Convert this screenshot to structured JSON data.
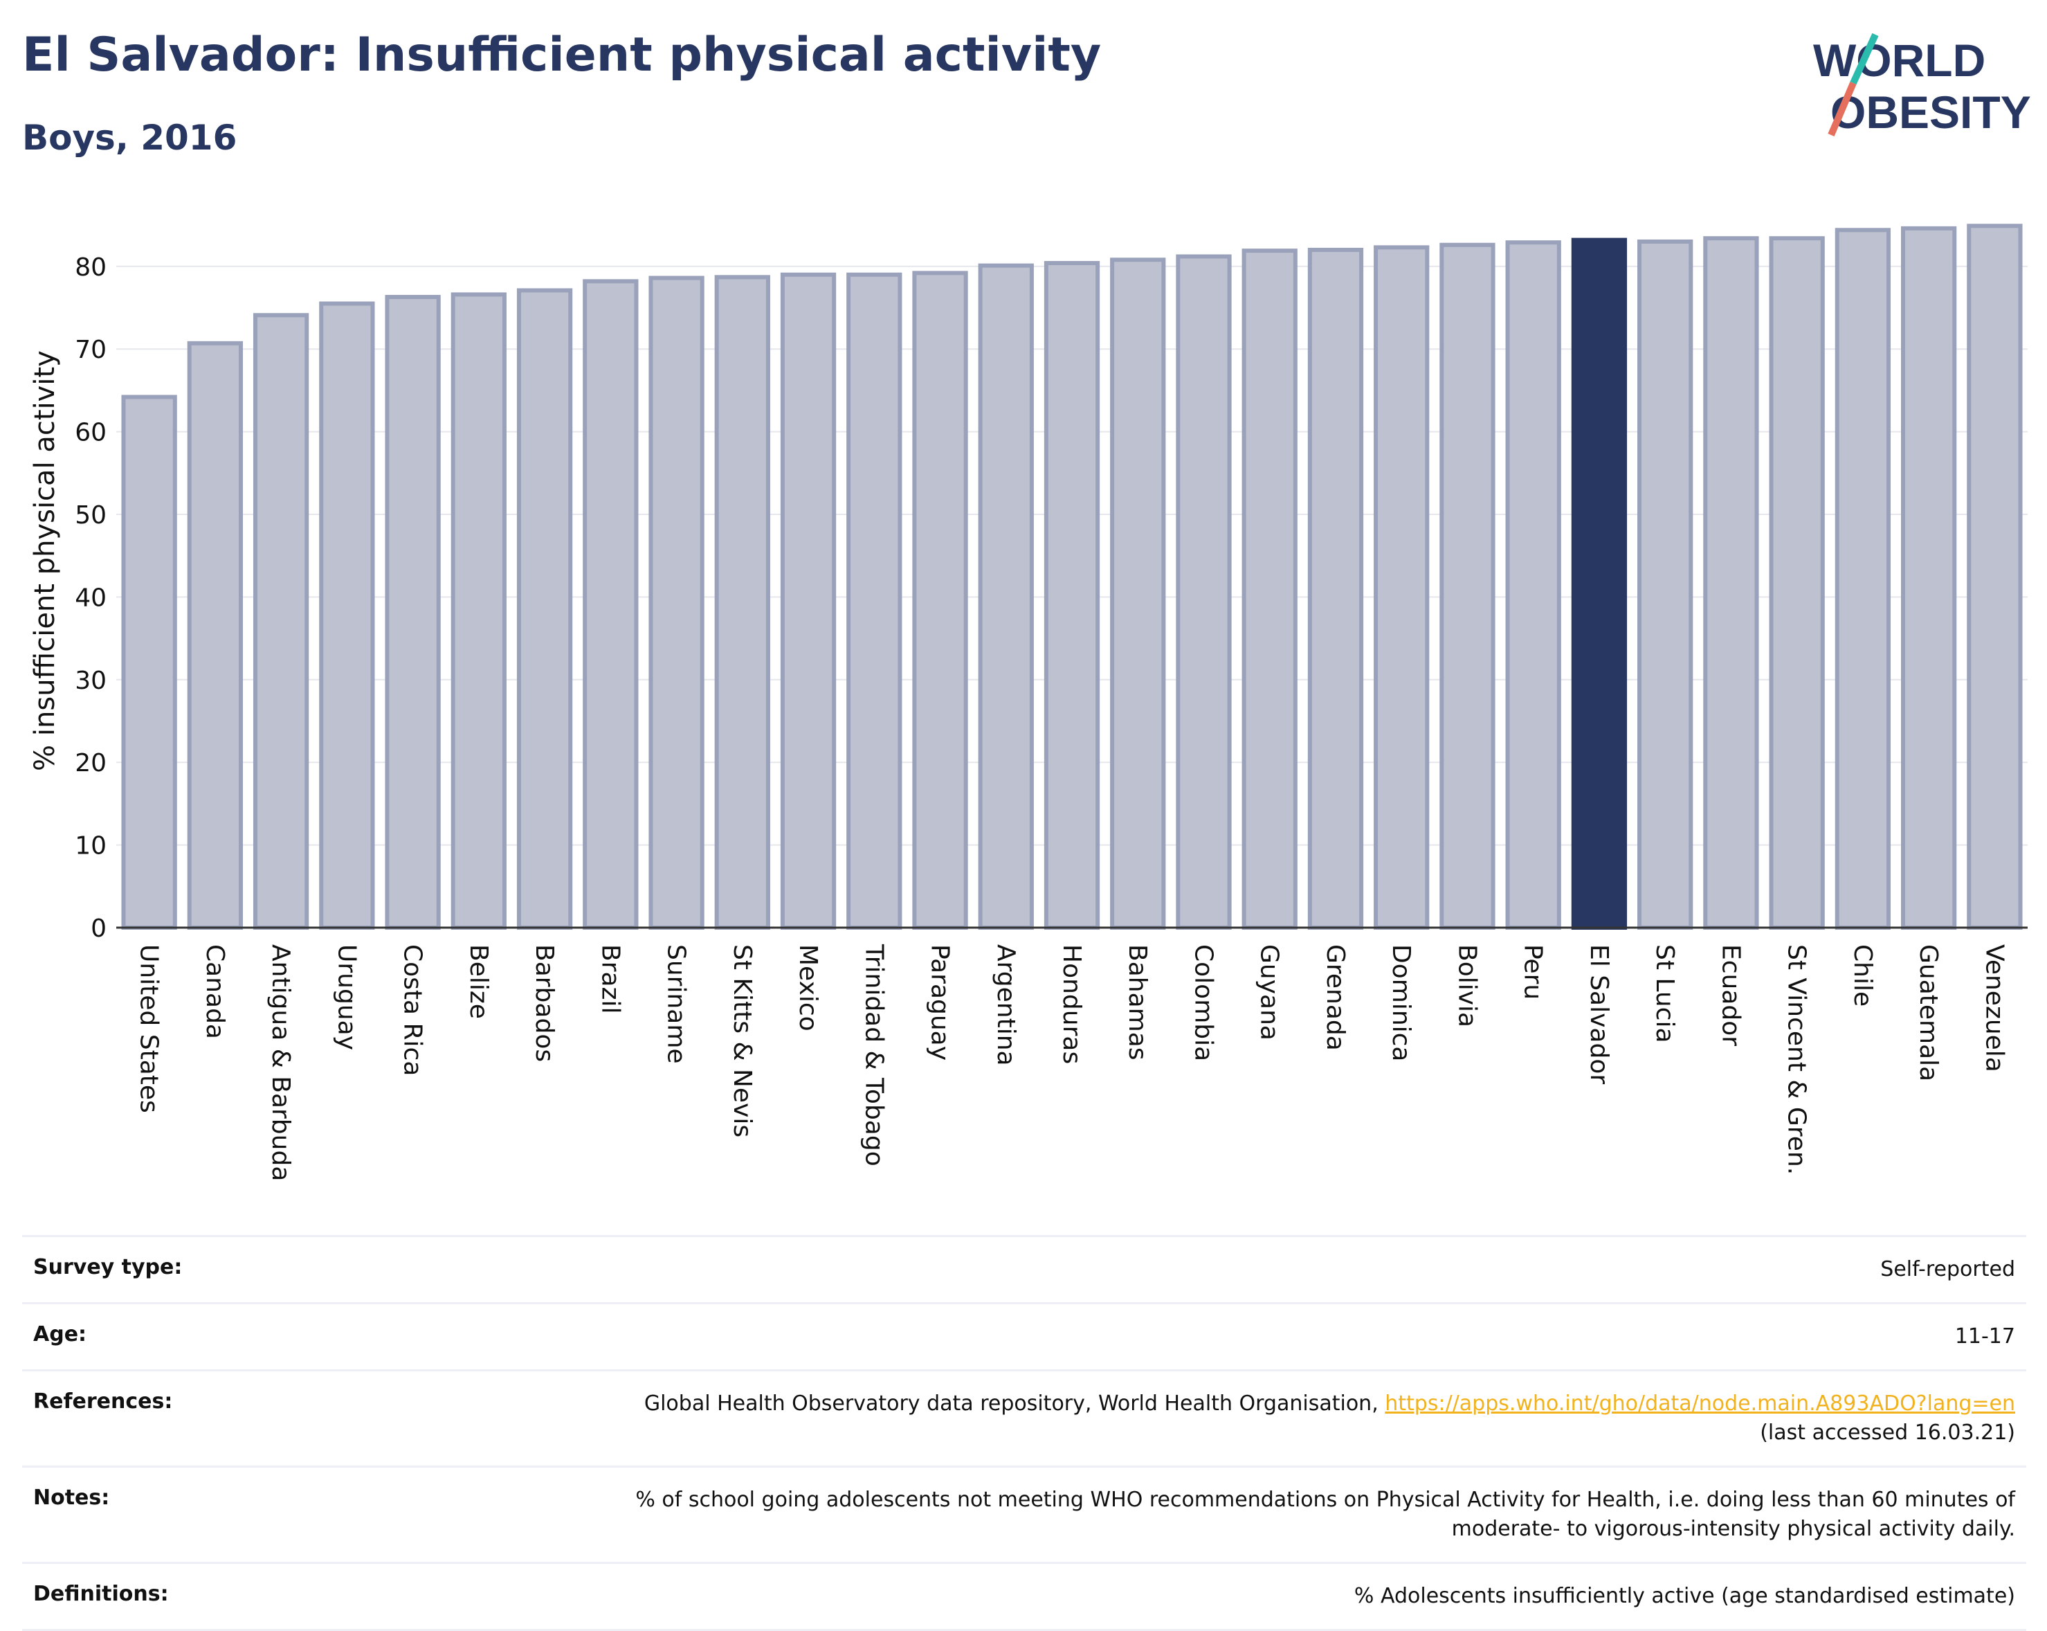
{
  "header": {
    "title": "El Salvador: Insufficient physical activity",
    "subtitle": "Boys, 2016"
  },
  "logo": {
    "line1": "WORLD",
    "line2": "OBESITY"
  },
  "colors": {
    "highlight": "#283761",
    "bar": "#bec2d0",
    "bar_edge": "#9aa1ba",
    "accent_teal": "#2bbbad",
    "accent_coral": "#e56f5c",
    "link": "#f2b21d"
  },
  "chart_data": {
    "type": "bar",
    "title": "El Salvador: Insufficient physical activity",
    "subtitle": "Boys, 2016",
    "xlabel": "",
    "ylabel": "% insufficient physical activity",
    "ylim": [
      0,
      85
    ],
    "yticks": [
      0,
      10,
      20,
      30,
      40,
      50,
      60,
      70,
      80
    ],
    "grid": true,
    "highlight": "El Salvador",
    "categories": [
      "United States",
      "Canada",
      "Antigua & Barbuda",
      "Uruguay",
      "Costa Rica",
      "Belize",
      "Barbados",
      "Brazil",
      "Suriname",
      "St Kitts & Nevis",
      "Mexico",
      "Trinidad & Tobago",
      "Paraguay",
      "Argentina",
      "Honduras",
      "Bahamas",
      "Colombia",
      "Guyana",
      "Grenada",
      "Dominica",
      "Bolivia",
      "Peru",
      "El Salvador",
      "St Lucia",
      "Ecuador",
      "St Vincent & Gren.",
      "Chile",
      "Guatemala",
      "Venezuela"
    ],
    "values": [
      64.2,
      70.7,
      74.1,
      75.5,
      76.3,
      76.6,
      77.1,
      78.2,
      78.6,
      78.7,
      79.0,
      79.0,
      79.2,
      80.1,
      80.4,
      80.8,
      81.2,
      81.9,
      82.0,
      82.3,
      82.6,
      82.9,
      83.2,
      83.0,
      83.4,
      83.4,
      84.4,
      84.6,
      84.9
    ]
  },
  "meta": {
    "survey_type": {
      "label": "Survey type:",
      "value": "Self-reported"
    },
    "age": {
      "label": "Age:",
      "value": "11-17"
    },
    "references": {
      "label": "References:",
      "text": "Global Health Observatory data repository, World Health Organisation, ",
      "link": "https://apps.who.int/gho/data/node.main.A893ADO?lang=en",
      "accessed": "(last accessed 16.03.21)"
    },
    "notes": {
      "label": "Notes:",
      "line1": "% of school going adolescents not meeting WHO recommendations on Physical Activity for Health, i.e. doing less than 60 minutes of",
      "line2": "moderate- to vigorous-intensity physical activity daily."
    },
    "definitions": {
      "label": "Definitions:",
      "value": "% Adolescents insufficiently active (age standardised estimate)"
    }
  }
}
